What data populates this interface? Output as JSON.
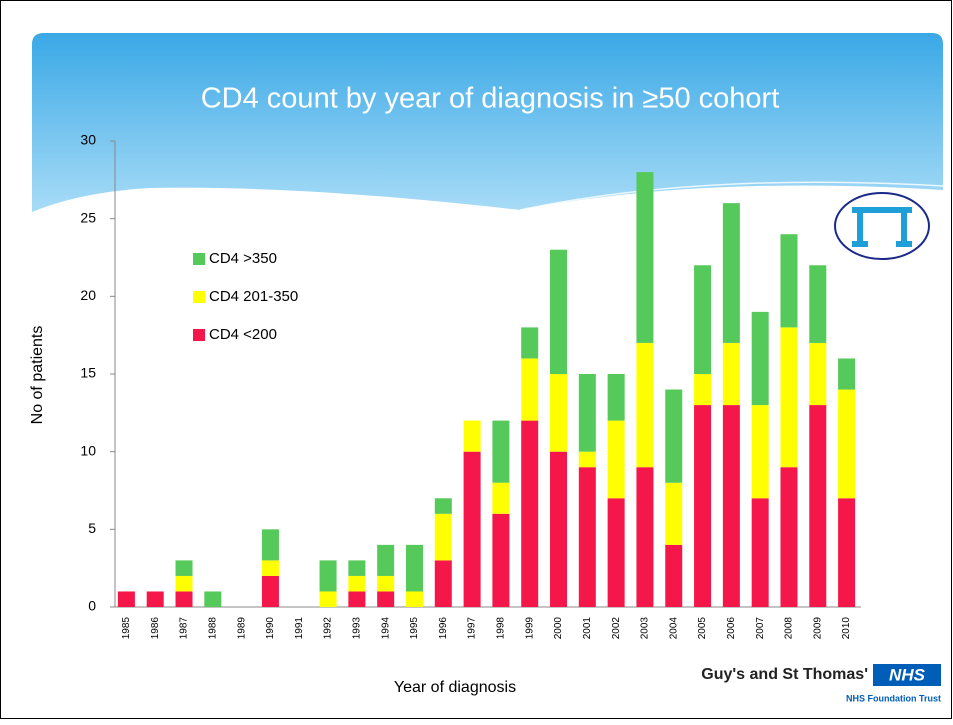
{
  "chart_data": {
    "type": "stacked-bar",
    "title": "CD4 count by year of diagnosis in ≥50 cohort",
    "x_label": "Year of diagnosis",
    "y_label": "No of patients",
    "categories": [
      "1985",
      "1986",
      "1987",
      "1988",
      "1989",
      "1990",
      "1991",
      "1992",
      "1993",
      "1994",
      "1995",
      "1996",
      "1997",
      "1998",
      "1999",
      "2000",
      "2001",
      "2002",
      "2003",
      "2004",
      "2005",
      "2006",
      "2007",
      "2008",
      "2009",
      "2010"
    ],
    "series": [
      {
        "name": "CD4 <200",
        "color": "#f5174a",
        "values": [
          1,
          1,
          1,
          0,
          0,
          2,
          0,
          0,
          1,
          1,
          0,
          3,
          10,
          6,
          12,
          10,
          9,
          7,
          9,
          4,
          13,
          13,
          7,
          9,
          13,
          7
        ]
      },
      {
        "name": "CD4 201-350",
        "color": "#ffff00",
        "values": [
          0,
          0,
          1,
          0,
          0,
          1,
          0,
          1,
          1,
          1,
          1,
          3,
          2,
          2,
          4,
          5,
          1,
          5,
          8,
          4,
          2,
          4,
          6,
          9,
          4,
          7
        ]
      },
      {
        "name": "CD4 >350",
        "color": "#55c95a",
        "values": [
          0,
          0,
          1,
          1,
          0,
          2,
          0,
          2,
          1,
          2,
          3,
          1,
          0,
          4,
          2,
          8,
          5,
          3,
          11,
          6,
          7,
          9,
          6,
          6,
          5,
          2
        ]
      }
    ],
    "ylim": [
      0,
      30
    ],
    "yticks": [
      0,
      5,
      10,
      15,
      20,
      25,
      30
    ],
    "grid": false
  },
  "footer": {
    "organisation": "Guy's and St Thomas'",
    "badge": "NHS",
    "subtitle": "NHS Foundation Trust"
  }
}
